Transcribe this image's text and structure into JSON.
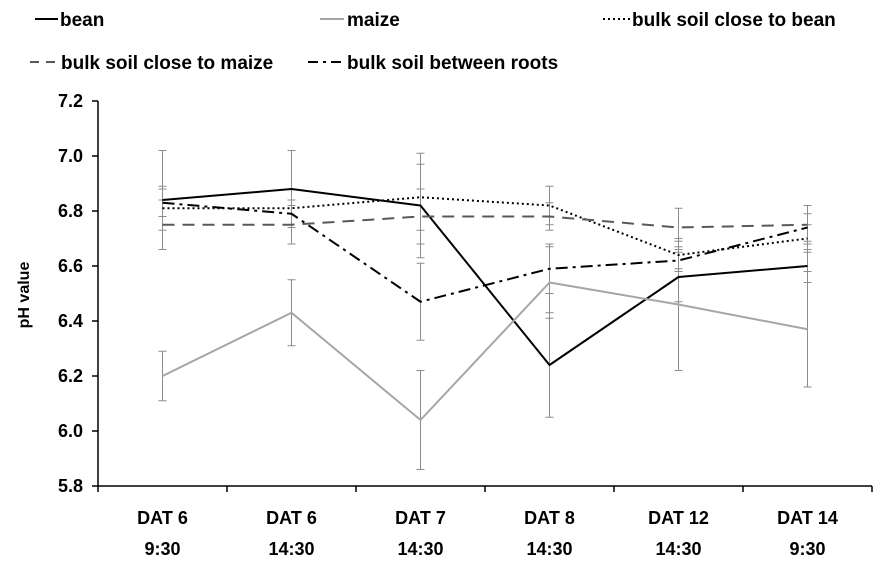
{
  "chart_data": {
    "type": "line",
    "title": "",
    "xlabel": "",
    "ylabel": "pH value",
    "ylim": [
      5.8,
      7.2
    ],
    "yticks": [
      "7.2",
      "7.0",
      "6.8",
      "6.6",
      "6.4",
      "6.2",
      "6.0",
      "5.8"
    ],
    "yticks_values": [
      7.2,
      7.0,
      6.8,
      6.6,
      6.4,
      6.2,
      6.0,
      5.8
    ],
    "categories": [
      [
        "DAT 6",
        "9:30"
      ],
      [
        "DAT 6",
        "14:30"
      ],
      [
        "DAT 7",
        "14:30"
      ],
      [
        "DAT 8",
        "14:30"
      ],
      [
        "DAT 12",
        "14:30"
      ],
      [
        "DAT 14",
        "9:30"
      ]
    ],
    "series": [
      {
        "name": "bean",
        "color": "#000000",
        "dash": "",
        "values": [
          6.84,
          6.88,
          6.82,
          6.24,
          6.56,
          6.6
        ],
        "errors": [
          0.18,
          0.14,
          0.19,
          0.19,
          0.09,
          0.06
        ]
      },
      {
        "name": "maize",
        "color": "#a6a6a6",
        "dash": "",
        "values": [
          6.2,
          6.43,
          6.04,
          6.54,
          6.46,
          6.37
        ],
        "errors": [
          0.09,
          0.12,
          0.18,
          0.13,
          0.24,
          0.21
        ]
      },
      {
        "name": "bulk soil close to bean",
        "color": "#000000",
        "dash": "2,3",
        "values": [
          6.81,
          6.81,
          6.85,
          6.82,
          6.64,
          6.7
        ],
        "errors": [
          0.08,
          0.07,
          0.12,
          0.07,
          0.05,
          0.05
        ]
      },
      {
        "name": "bulk soil close to maize",
        "color": "#595959",
        "dash": "12,8",
        "values": [
          6.75,
          6.75,
          6.78,
          6.78,
          6.74,
          6.75
        ],
        "errors": [
          0.09,
          0.07,
          0.1,
          0.05,
          0.07,
          0.07
        ]
      },
      {
        "name": "bulk soil between roots",
        "color": "#000000",
        "dash": "12,5,3,5",
        "values": [
          6.83,
          6.79,
          6.47,
          6.59,
          6.62,
          6.74
        ],
        "errors": [
          0.05,
          0.05,
          0.14,
          0.09,
          0.04,
          0.05
        ]
      }
    ],
    "legend_placement": "top"
  }
}
